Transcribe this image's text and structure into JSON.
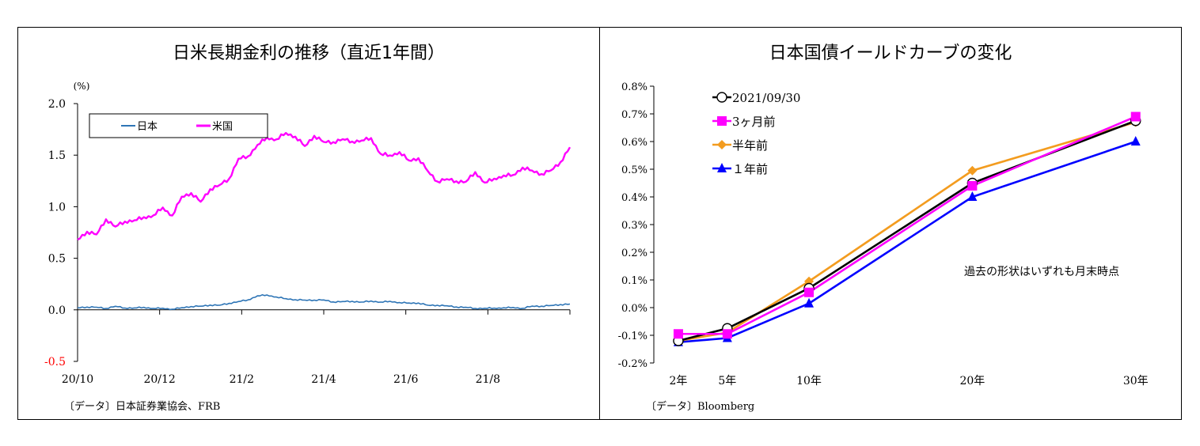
{
  "chart_data": [
    {
      "type": "line",
      "title": "日米長期金利の推移（直近1年間）",
      "ylabel": "(%)",
      "ylim": [
        -0.5,
        2.0
      ],
      "yticks": [
        "2.0",
        "1.5",
        "1.0",
        "0.5",
        "0.0",
        "-0.5"
      ],
      "xticks": [
        "20/10",
        "20/12",
        "21/2",
        "21/4",
        "21/6",
        "21/8"
      ],
      "x": [
        "20/10",
        "20/10",
        "20/11",
        "20/11",
        "20/11",
        "20/11",
        "20/11",
        "20/12",
        "20/12",
        "20/12",
        "20/12",
        "21/1",
        "21/1",
        "21/1",
        "21/1",
        "21/1",
        "21/2",
        "21/2",
        "21/2",
        "21/2",
        "21/3",
        "21/3",
        "21/3",
        "21/3",
        "21/3",
        "21/4",
        "21/4",
        "21/4",
        "21/4",
        "21/4",
        "21/5",
        "21/5",
        "21/5",
        "21/5",
        "21/6",
        "21/6",
        "21/6",
        "21/6",
        "21/6",
        "21/7",
        "21/7",
        "21/7",
        "21/7",
        "21/8",
        "21/8",
        "21/8",
        "21/8",
        "21/8",
        "21/9",
        "21/9",
        "21/9",
        "21/9",
        "21/9"
      ],
      "series": [
        {
          "name": "日本",
          "color": "#2e75b6",
          "values": [
            0.02,
            0.03,
            0.02,
            0.02,
            0.03,
            0.02,
            0.02,
            0.02,
            0.02,
            0.01,
            0.01,
            0.02,
            0.03,
            0.04,
            0.04,
            0.05,
            0.06,
            0.08,
            0.1,
            0.13,
            0.15,
            0.12,
            0.11,
            0.1,
            0.09,
            0.1,
            0.09,
            0.08,
            0.08,
            0.08,
            0.08,
            0.08,
            0.08,
            0.08,
            0.07,
            0.07,
            0.06,
            0.05,
            0.04,
            0.04,
            0.03,
            0.02,
            0.02,
            0.01,
            0.02,
            0.02,
            0.02,
            0.02,
            0.03,
            0.04,
            0.04,
            0.05,
            0.06
          ]
        },
        {
          "name": "米国",
          "color": "#ff00ff",
          "values": [
            0.68,
            0.75,
            0.78,
            0.85,
            0.78,
            0.88,
            0.85,
            0.93,
            0.93,
            0.94,
            0.93,
            1.1,
            1.13,
            1.09,
            1.13,
            1.19,
            1.3,
            1.45,
            1.52,
            1.6,
            1.62,
            1.68,
            1.72,
            1.68,
            1.62,
            1.64,
            1.62,
            1.66,
            1.64,
            1.66,
            1.63,
            1.62,
            1.55,
            1.5,
            1.53,
            1.47,
            1.42,
            1.35,
            1.28,
            1.25,
            1.27,
            1.22,
            1.3,
            1.28,
            1.27,
            1.3,
            1.32,
            1.33,
            1.37,
            1.35,
            1.33,
            1.45,
            1.55
          ]
        }
      ],
      "legend_position": "top-left",
      "source": "〔データ〕日本証券業協会、FRB"
    },
    {
      "type": "line",
      "title": "日本国債イールドカーブの変化",
      "ylim": [
        -0.2,
        0.8
      ],
      "yticks": [
        "0.8%",
        "0.7%",
        "0.6%",
        "0.5%",
        "0.4%",
        "0.3%",
        "0.2%",
        "0.1%",
        "0.0%",
        "-0.1%",
        "-0.2%"
      ],
      "categories": [
        "2年",
        "5年",
        "10年",
        "20年",
        "30年"
      ],
      "x": [
        2,
        5,
        10,
        20,
        30
      ],
      "series": [
        {
          "name": "2021/09/30",
          "color": "#000000",
          "marker": "circle-open",
          "values": [
            -0.12,
            -0.075,
            0.07,
            0.45,
            0.675
          ]
        },
        {
          "name": "3ヶ月前",
          "color": "#ff00ff",
          "marker": "square",
          "values": [
            -0.095,
            -0.095,
            0.055,
            0.44,
            0.69
          ]
        },
        {
          "name": "半年前",
          "color": "#f39c1f",
          "marker": "diamond",
          "values": [
            -0.12,
            -0.09,
            0.095,
            0.495,
            0.67
          ]
        },
        {
          "name": "１年前",
          "color": "#0000ff",
          "marker": "triangle",
          "values": [
            -0.125,
            -0.11,
            0.015,
            0.4,
            0.6
          ]
        }
      ],
      "legend_position": "top-left",
      "annotation": "過去の形状はいずれも月末時点",
      "source": "〔データ〕Bloomberg"
    }
  ]
}
